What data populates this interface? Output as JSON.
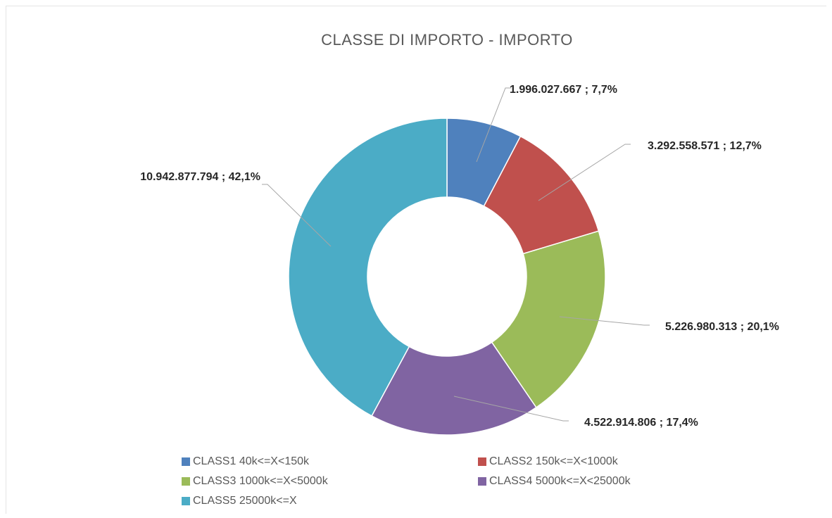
{
  "chart_data": {
    "type": "donut",
    "title": "CLASSE DI IMPORTO - IMPORTO",
    "categories": [
      "CLASS1 40k<=X<150k",
      "CLASS2 150k<=X<1000k",
      "CLASS3 1000k<=X<5000k",
      "CLASS4 5000k<=X<25000k",
      "CLASS5 25000k<=X"
    ],
    "values": [
      1996027667,
      3292558571,
      5226980313,
      4522914806,
      10942877794
    ],
    "value_labels": [
      "1.996.027.667 ; 7,7%",
      "3.292.558.571 ; 12,7%",
      "5.226.980.313 ; 20,1%",
      "4.522.914.806 ; 17,4%",
      "10.942.877.794 ; 42,1%"
    ],
    "colors": [
      "#4f81bd",
      "#c0504d",
      "#9bbb59",
      "#8064a2",
      "#4bacc6"
    ],
    "legend": "bottom"
  }
}
